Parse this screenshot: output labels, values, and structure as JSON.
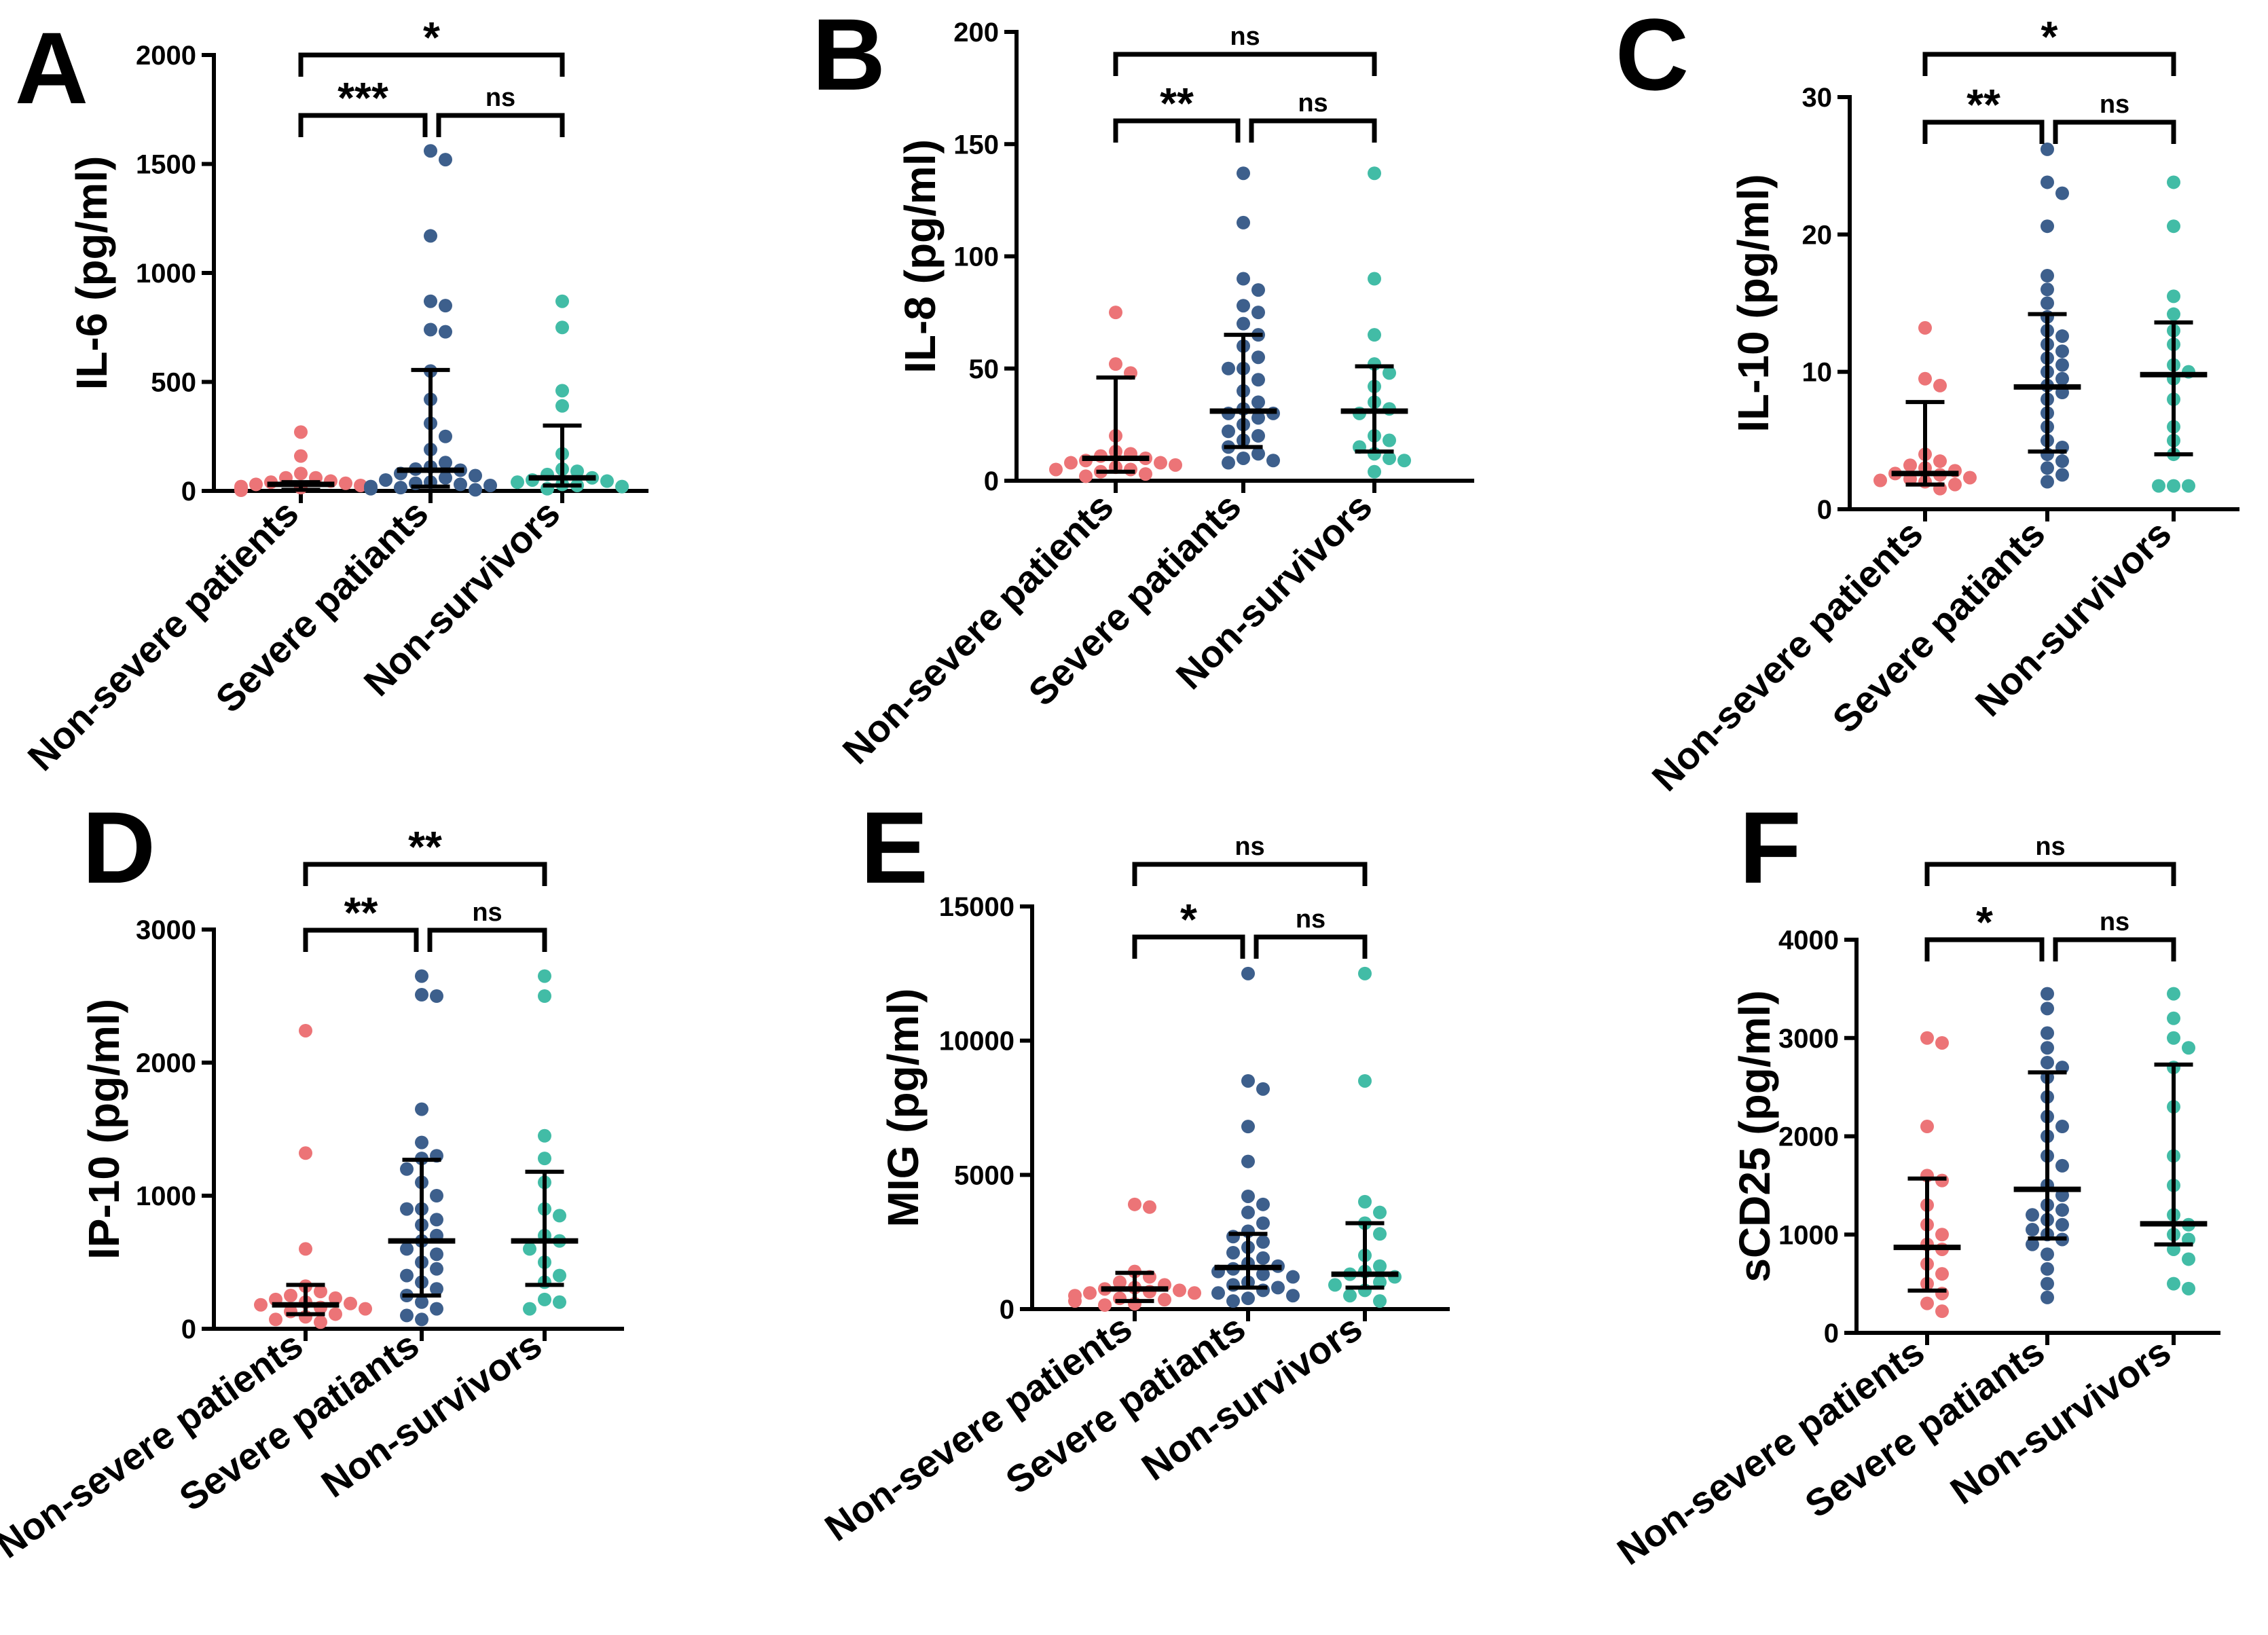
{
  "chart_data": [
    {
      "panel": "A",
      "type": "scatter",
      "ylabel": "IL-6 (pg/ml)",
      "ylim": [
        0,
        2000
      ],
      "yticks": [
        0,
        500,
        1000,
        1500,
        2000
      ],
      "categories": [
        "Non-severe patients",
        "Severe patiants",
        "Non-survivors"
      ],
      "colors": [
        "#ec7477",
        "#3d5f8c",
        "#42bca6"
      ],
      "series": [
        {
          "name": "Non-severe patients",
          "values": [
            270,
            160,
            80,
            60,
            45,
            35,
            30,
            25,
            20,
            15,
            12,
            10,
            8,
            6,
            5,
            3,
            60,
            40
          ],
          "median": 30,
          "q1": 5,
          "q3": 40
        },
        {
          "name": "Severe patiants",
          "values": [
            1560,
            1520,
            1170,
            870,
            850,
            740,
            730,
            550,
            420,
            310,
            250,
            190,
            130,
            100,
            95,
            80,
            60,
            50,
            40,
            35,
            30,
            25,
            20,
            15,
            10,
            70,
            110,
            5
          ],
          "median": 95,
          "q1": 20,
          "q3": 555
        },
        {
          "name": "Non-survivors",
          "values": [
            870,
            750,
            460,
            390,
            170,
            100,
            90,
            75,
            60,
            50,
            45,
            40,
            30,
            25,
            20,
            10
          ],
          "median": 60,
          "q1": 25,
          "q3": 300
        }
      ],
      "comparisons": [
        {
          "pair": [
            0,
            1
          ],
          "label": "***"
        },
        {
          "pair": [
            1,
            2
          ],
          "label": "ns"
        },
        {
          "pair": [
            0,
            2
          ],
          "label": "*"
        }
      ]
    },
    {
      "panel": "B",
      "type": "scatter",
      "ylabel": "IL-8 (pg/ml)",
      "ylim": [
        0,
        200
      ],
      "yticks": [
        0,
        50,
        100,
        150,
        200
      ],
      "categories": [
        "Non-severe patients",
        "Severe patiants",
        "Non-survivors"
      ],
      "colors": [
        "#ec7477",
        "#3d5f8c",
        "#42bca6"
      ],
      "series": [
        {
          "name": "Non-severe patients",
          "values": [
            75,
            52,
            48,
            20,
            13,
            12,
            11,
            10,
            9,
            8,
            7,
            6,
            5,
            4,
            3,
            2,
            5,
            8
          ],
          "median": 10,
          "q1": 4,
          "q3": 46
        },
        {
          "name": "Severe patiants",
          "values": [
            137,
            115,
            90,
            85,
            78,
            75,
            70,
            65,
            60,
            55,
            50,
            45,
            40,
            35,
            32,
            30,
            28,
            25,
            22,
            20,
            18,
            15,
            12,
            10,
            9,
            8,
            50,
            30
          ],
          "median": 31,
          "q1": 15,
          "q3": 65
        },
        {
          "name": "Non-survivors",
          "values": [
            137,
            90,
            65,
            52,
            48,
            42,
            35,
            32,
            30,
            20,
            18,
            15,
            12,
            10,
            9,
            4
          ],
          "median": 31,
          "q1": 13,
          "q3": 51
        }
      ],
      "comparisons": [
        {
          "pair": [
            0,
            1
          ],
          "label": "**"
        },
        {
          "pair": [
            1,
            2
          ],
          "label": "ns"
        },
        {
          "pair": [
            0,
            2
          ],
          "label": "ns"
        }
      ]
    },
    {
      "panel": "C",
      "type": "scatter",
      "ylabel": "IL-10 (pg/ml)",
      "ylim": [
        0,
        30
      ],
      "yticks": [
        0,
        10,
        20,
        30
      ],
      "categories": [
        "Non-severe patients",
        "Severe patiants",
        "Non-survivors"
      ],
      "colors": [
        "#ec7477",
        "#3d5f8c",
        "#42bca6"
      ],
      "series": [
        {
          "name": "Non-severe patients",
          "values": [
            13.2,
            9.5,
            9.0,
            4.0,
            3.5,
            3.0,
            2.8,
            2.6,
            2.5,
            2.3,
            2.1,
            2.0,
            1.8,
            1.5,
            3.2,
            2.2
          ],
          "median": 2.6,
          "q1": 1.8,
          "q3": 7.8
        },
        {
          "name": "Severe patiants",
          "values": [
            26.2,
            23.8,
            23.0,
            20.6,
            17.0,
            16.0,
            15.0,
            13.0,
            12.6,
            12.0,
            11.0,
            10.5,
            10.0,
            9.5,
            9.0,
            8.5,
            8.0,
            7.0,
            6.0,
            5.0,
            4.5,
            4.0,
            3.5,
            3.0,
            2.5,
            2.0,
            14.0,
            11.5
          ],
          "median": 8.9,
          "q1": 4.2,
          "q3": 14.2
        },
        {
          "name": "Non-survivors",
          "values": [
            23.8,
            20.6,
            15.5,
            14.2,
            13.0,
            12.0,
            10.5,
            10.0,
            9.5,
            8.0,
            6.0,
            5.0,
            4.0,
            1.7,
            1.7,
            1.7
          ],
          "median": 9.8,
          "q1": 4.0,
          "q3": 13.6
        }
      ],
      "comparisons": [
        {
          "pair": [
            0,
            1
          ],
          "label": "**"
        },
        {
          "pair": [
            1,
            2
          ],
          "label": "ns"
        },
        {
          "pair": [
            0,
            2
          ],
          "label": "*"
        }
      ]
    },
    {
      "panel": "D",
      "type": "scatter",
      "ylabel": "IP-10 (pg/ml)",
      "ylim": [
        0,
        3000
      ],
      "yticks": [
        0,
        1000,
        2000,
        3000
      ],
      "categories": [
        "Non-severe patients",
        "Severe patiants",
        "Non-survivors"
      ],
      "colors": [
        "#ec7477",
        "#3d5f8c",
        "#42bca6"
      ],
      "series": [
        {
          "name": "Non-severe patients",
          "values": [
            2240,
            1320,
            600,
            320,
            280,
            250,
            220,
            200,
            180,
            160,
            150,
            130,
            110,
            90,
            70,
            50,
            230,
            190
          ],
          "median": 180,
          "q1": 110,
          "q3": 330
        },
        {
          "name": "Severe patiants",
          "values": [
            2650,
            2510,
            2500,
            1650,
            1400,
            1300,
            1280,
            1200,
            1100,
            1000,
            900,
            820,
            780,
            700,
            660,
            600,
            560,
            500,
            450,
            400,
            350,
            300,
            250,
            200,
            150,
            100,
            70,
            900
          ],
          "median": 660,
          "q1": 250,
          "q3": 1270
        },
        {
          "name": "Non-survivors",
          "values": [
            2650,
            2500,
            1450,
            1280,
            1100,
            900,
            850,
            700,
            660,
            600,
            500,
            400,
            350,
            220,
            200,
            150
          ],
          "median": 660,
          "q1": 330,
          "q3": 1180
        }
      ],
      "comparisons": [
        {
          "pair": [
            0,
            1
          ],
          "label": "**"
        },
        {
          "pair": [
            1,
            2
          ],
          "label": "ns"
        },
        {
          "pair": [
            0,
            2
          ],
          "label": "**"
        }
      ]
    },
    {
      "panel": "E",
      "type": "scatter",
      "ylabel": "MIG (pg/ml)",
      "ylim": [
        0,
        15000
      ],
      "yticks": [
        0,
        5000,
        10000,
        15000
      ],
      "categories": [
        "Non-severe patients",
        "Severe patiants",
        "Non-survivors"
      ],
      "colors": [
        "#ec7477",
        "#3d5f8c",
        "#42bca6"
      ],
      "series": [
        {
          "name": "Non-severe patients",
          "values": [
            3900,
            3800,
            1400,
            1200,
            1000,
            900,
            800,
            750,
            700,
            650,
            600,
            500,
            400,
            300,
            200,
            150,
            600,
            350
          ],
          "median": 750,
          "q1": 300,
          "q3": 1350
        },
        {
          "name": "Severe patiants",
          "values": [
            12500,
            8500,
            8200,
            6800,
            5500,
            4200,
            3900,
            3600,
            3200,
            2900,
            2700,
            2500,
            2300,
            2100,
            1900,
            1700,
            1600,
            1500,
            1400,
            1300,
            1200,
            1000,
            900,
            800,
            700,
            600,
            500,
            400,
            300
          ],
          "median": 1550,
          "q1": 800,
          "q3": 2800
        },
        {
          "name": "Non-survivors",
          "values": [
            12500,
            8500,
            4000,
            3600,
            3200,
            2800,
            2000,
            1600,
            1400,
            1300,
            1200,
            1000,
            900,
            700,
            500,
            300
          ],
          "median": 1300,
          "q1": 800,
          "q3": 3200
        }
      ],
      "comparisons": [
        {
          "pair": [
            0,
            1
          ],
          "label": "*"
        },
        {
          "pair": [
            1,
            2
          ],
          "label": "ns"
        },
        {
          "pair": [
            0,
            2
          ],
          "label": "ns"
        }
      ]
    },
    {
      "panel": "F",
      "type": "scatter",
      "ylabel": "sCD25 (pg/ml)",
      "ylim": [
        0,
        4000
      ],
      "yticks": [
        0,
        1000,
        2000,
        3000,
        4000
      ],
      "categories": [
        "Non-severe patients",
        "Severe patiants",
        "Non-survivors"
      ],
      "colors": [
        "#ec7477",
        "#3d5f8c",
        "#42bca6"
      ],
      "series": [
        {
          "name": "Non-severe patients",
          "values": [
            3000,
            2950,
            2100,
            1600,
            1550,
            1300,
            1100,
            1000,
            900,
            850,
            700,
            600,
            500,
            400,
            300,
            220
          ],
          "median": 870,
          "q1": 430,
          "q3": 1570
        },
        {
          "name": "Severe patiants",
          "values": [
            3450,
            3300,
            3050,
            2900,
            2750,
            2700,
            2600,
            2400,
            2200,
            2100,
            2000,
            1800,
            1700,
            1500,
            1400,
            1300,
            1250,
            1200,
            1150,
            1100,
            1050,
            1000,
            950,
            900,
            800,
            650,
            500,
            360
          ],
          "median": 1460,
          "q1": 960,
          "q3": 2650
        },
        {
          "name": "Non-survivors",
          "values": [
            3450,
            3200,
            3000,
            2900,
            2700,
            2300,
            1800,
            1500,
            1200,
            1100,
            1000,
            950,
            850,
            750,
            500,
            450
          ],
          "median": 1110,
          "q1": 900,
          "q3": 2730
        }
      ],
      "comparisons": [
        {
          "pair": [
            0,
            1
          ],
          "label": "*"
        },
        {
          "pair": [
            1,
            2
          ],
          "label": "ns"
        },
        {
          "pair": [
            0,
            2
          ],
          "label": "ns"
        }
      ]
    }
  ]
}
